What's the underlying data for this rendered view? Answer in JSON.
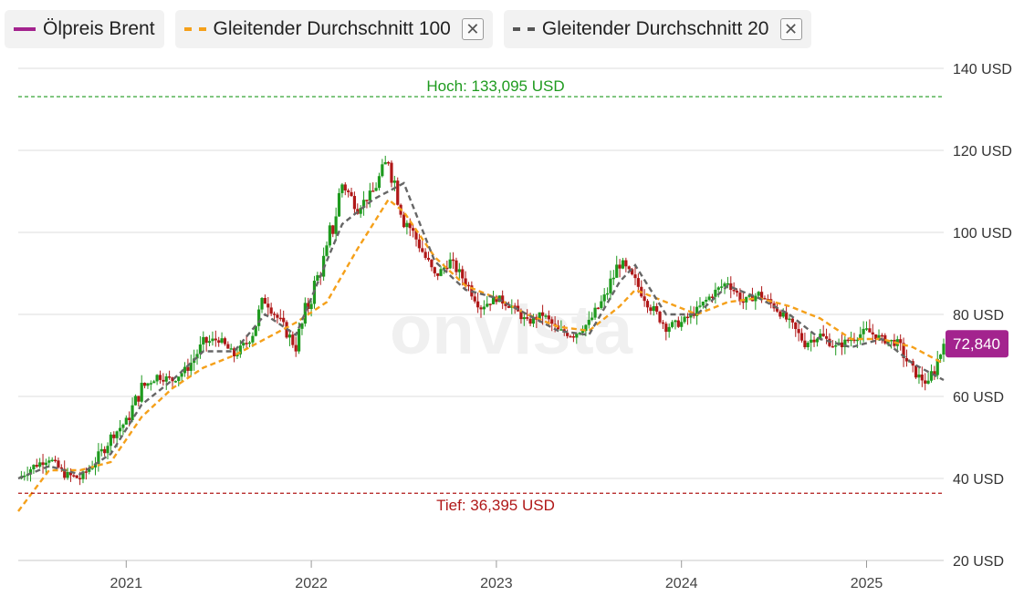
{
  "legend": {
    "items": [
      {
        "label": "Ölpreis Brent",
        "color": "#a3238e",
        "style": "solid",
        "closable": false
      },
      {
        "label": "Gleitender Durchschnitt 100",
        "color": "#f5a01a",
        "style": "dashed",
        "closable": true
      },
      {
        "label": "Gleitender Durchschnitt 20",
        "color": "#555555",
        "style": "dashed",
        "closable": true
      }
    ],
    "close_icon": "close-icon"
  },
  "chart_data": {
    "type": "line",
    "title": "",
    "xlabel": "",
    "ylabel": "",
    "ylim": [
      20,
      140
    ],
    "y_ticks": [
      {
        "value": 20,
        "label": "20 USD"
      },
      {
        "value": 40,
        "label": "40 USD"
      },
      {
        "value": 60,
        "label": "60 USD"
      },
      {
        "value": 80,
        "label": "80 USD"
      },
      {
        "value": 100,
        "label": "100 USD"
      },
      {
        "value": 120,
        "label": "120 USD"
      },
      {
        "value": 140,
        "label": "140 USD"
      }
    ],
    "x_range": [
      "2020-06",
      "2025-06"
    ],
    "x_ticks": [
      {
        "value": "2021-01",
        "label": "2021"
      },
      {
        "value": "2022-01",
        "label": "2022"
      },
      {
        "value": "2023-01",
        "label": "2023"
      },
      {
        "value": "2024-01",
        "label": "2024"
      },
      {
        "value": "2025-01",
        "label": "2025"
      }
    ],
    "grid": true,
    "watermark": "onvista",
    "high": {
      "value": 133.095,
      "label": "Hoch: 133,095 USD",
      "color": "#1e9a1e"
    },
    "low": {
      "value": 36.395,
      "label": "Tief: 36,395 USD",
      "color": "#b01818"
    },
    "current": {
      "value": 72.84,
      "label": "72,840",
      "color": "#a3238e"
    },
    "candle_colors": {
      "up": "#1e9a1e",
      "down": "#b01818"
    },
    "price": {
      "name": "Ölpreis Brent",
      "x": [
        "2020-06",
        "2020-07",
        "2020-08",
        "2020-09",
        "2020-10",
        "2020-11",
        "2020-12",
        "2021-01",
        "2021-02",
        "2021-03",
        "2021-04",
        "2021-05",
        "2021-06",
        "2021-07",
        "2021-08",
        "2021-09",
        "2021-10",
        "2021-11",
        "2021-12",
        "2022-01",
        "2022-02",
        "2022-03",
        "2022-04",
        "2022-05",
        "2022-06",
        "2022-07",
        "2022-08",
        "2022-09",
        "2022-10",
        "2022-11",
        "2022-12",
        "2023-01",
        "2023-02",
        "2023-03",
        "2023-04",
        "2023-05",
        "2023-06",
        "2023-07",
        "2023-08",
        "2023-09",
        "2023-10",
        "2023-11",
        "2023-12",
        "2024-01",
        "2024-02",
        "2024-03",
        "2024-04",
        "2024-05",
        "2024-06",
        "2024-07",
        "2024-08",
        "2024-09",
        "2024-10",
        "2024-11",
        "2024-12",
        "2025-01",
        "2025-02",
        "2025-03",
        "2025-04",
        "2025-05",
        "2025-06"
      ],
      "values": [
        40,
        43,
        45,
        41,
        40,
        44,
        50,
        54,
        62,
        65,
        64,
        67,
        73,
        74,
        70,
        74,
        84,
        78,
        72,
        85,
        95,
        112,
        106,
        110,
        118,
        104,
        97,
        89,
        93,
        88,
        82,
        84,
        82,
        78,
        80,
        76,
        75,
        78,
        84,
        93,
        88,
        82,
        77,
        78,
        81,
        85,
        88,
        83,
        85,
        82,
        78,
        73,
        75,
        72,
        74,
        76,
        74,
        73,
        66,
        63,
        72.84
      ]
    },
    "series": [
      {
        "name": "Gleitender Durchschnitt 100",
        "x": [
          "2020-06",
          "2020-08",
          "2020-10",
          "2020-12",
          "2021-02",
          "2021-04",
          "2021-06",
          "2021-08",
          "2021-10",
          "2021-12",
          "2022-02",
          "2022-04",
          "2022-06",
          "2022-07",
          "2022-09",
          "2022-11",
          "2023-01",
          "2023-03",
          "2023-05",
          "2023-07",
          "2023-09",
          "2023-10",
          "2023-12",
          "2024-02",
          "2024-04",
          "2024-06",
          "2024-08",
          "2024-10",
          "2024-12",
          "2025-02",
          "2025-04",
          "2025-06"
        ],
        "values": [
          32,
          42,
          42,
          44,
          55,
          62,
          67,
          70,
          74,
          78,
          83,
          96,
          108,
          105,
          94,
          87,
          84,
          80,
          77,
          76,
          82,
          86,
          83,
          80,
          83,
          84,
          82,
          79,
          74,
          74,
          72,
          68
        ]
      },
      {
        "name": "Gleitender Durchschnitt 20",
        "x": [
          "2020-06",
          "2020-08",
          "2020-10",
          "2020-12",
          "2021-02",
          "2021-04",
          "2021-06",
          "2021-08",
          "2021-10",
          "2021-12",
          "2022-01",
          "2022-03",
          "2022-05",
          "2022-07",
          "2022-09",
          "2022-11",
          "2023-01",
          "2023-03",
          "2023-05",
          "2023-07",
          "2023-09",
          "2023-10",
          "2023-12",
          "2024-02",
          "2024-04",
          "2024-06",
          "2024-08",
          "2024-10",
          "2024-12",
          "2025-02",
          "2025-04",
          "2025-06"
        ],
        "values": [
          40,
          43,
          41,
          46,
          58,
          64,
          71,
          71,
          80,
          75,
          84,
          102,
          108,
          112,
          93,
          86,
          84,
          80,
          76,
          75,
          88,
          92,
          80,
          80,
          87,
          84,
          80,
          74,
          72,
          74,
          68,
          64
        ]
      }
    ]
  }
}
